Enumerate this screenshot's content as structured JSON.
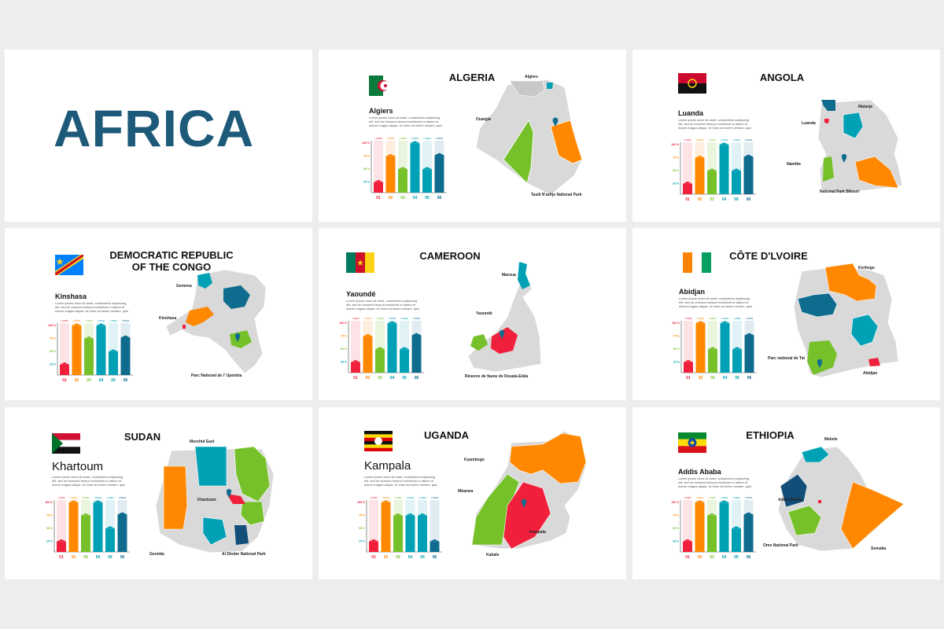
{
  "cover": {
    "title": "AFRICA"
  },
  "body_text": "Lorem ipsum dolor sit amet, consectetur adipiscing elit, sed do eiusmod tempor incididunt ut labore et dolore magna aliqua. Ut enim ad minim veniam, quis",
  "colors": {
    "red": "#f0203c",
    "orange": "#ff8800",
    "green": "#76c12a",
    "teal": "#00a1b5",
    "blue": "#0f6c8e",
    "navy": "#124e78",
    "grey": "#d9d9d9",
    "title": "#1d5a7a"
  },
  "chart_data": [
    {
      "type": "bar",
      "id": "algeria",
      "categories": [
        "01",
        "02",
        "03",
        "04",
        "05",
        "06"
      ],
      "yticks": [
        "100 %",
        "75 %",
        "50 %",
        "25 %"
      ],
      "top_labels": [
        "LOREM",
        "LOREM",
        "LOREM",
        "LOREM",
        "LOREM",
        "LOREM"
      ],
      "values": [
        20,
        70,
        45,
        95,
        45,
        72
      ],
      "ylim": [
        0,
        100
      ]
    },
    {
      "type": "bar",
      "id": "angola",
      "categories": [
        "01",
        "02",
        "03",
        "04",
        "05",
        "06"
      ],
      "yticks": [
        "100 %",
        "75 %",
        "50 %",
        "25 %"
      ],
      "top_labels": [
        "LOREM",
        "LOREM",
        "LOREM",
        "LOREM",
        "LOREM",
        "LOREM"
      ],
      "values": [
        20,
        70,
        45,
        95,
        45,
        72
      ],
      "ylim": [
        0,
        100
      ]
    },
    {
      "type": "bar",
      "id": "congo",
      "categories": [
        "01",
        "02",
        "03",
        "04",
        "05",
        "06"
      ],
      "yticks": [
        "100 %",
        "75 %",
        "50 %",
        "25 %"
      ],
      "top_labels": [
        "LOREM",
        "LOREM",
        "LOREM",
        "LOREM",
        "LOREM",
        "LOREM"
      ],
      "values": [
        20,
        95,
        70,
        95,
        45,
        72
      ],
      "ylim": [
        0,
        100
      ]
    },
    {
      "type": "bar",
      "id": "cameroon",
      "categories": [
        "01",
        "02",
        "03",
        "04",
        "05",
        "06"
      ],
      "yticks": [
        "100 %",
        "75 %",
        "50 %",
        "25 %"
      ],
      "top_labels": [
        "LOREM",
        "LOREM",
        "LOREM",
        "LOREM",
        "LOREM",
        "LOREM"
      ],
      "values": [
        20,
        70,
        45,
        95,
        45,
        72
      ],
      "ylim": [
        0,
        100
      ]
    },
    {
      "type": "bar",
      "id": "cote",
      "categories": [
        "01",
        "02",
        "03",
        "04",
        "05",
        "06"
      ],
      "yticks": [
        "100 %",
        "75 %",
        "50 %",
        "25 %"
      ],
      "top_labels": [
        "LOREM",
        "LOREM",
        "LOREM",
        "LOREM",
        "LOREM",
        "LOREM"
      ],
      "values": [
        20,
        95,
        45,
        95,
        45,
        72
      ],
      "ylim": [
        0,
        100
      ]
    },
    {
      "type": "bar",
      "id": "sudan",
      "categories": [
        "01",
        "02",
        "03",
        "04",
        "05",
        "06"
      ],
      "yticks": [
        "100 %",
        "75 %",
        "50 %",
        "25 %"
      ],
      "top_labels": [
        "LOREM",
        "LOREM",
        "LOREM",
        "LOREM",
        "LOREM",
        "LOREM"
      ],
      "values": [
        20,
        95,
        70,
        95,
        45,
        72
      ],
      "ylim": [
        0,
        100
      ]
    },
    {
      "type": "bar",
      "id": "uganda",
      "categories": [
        "01",
        "02",
        "03",
        "04",
        "05",
        "06"
      ],
      "yticks": [
        "100 %",
        "75 %",
        "50 %",
        "25 %"
      ],
      "top_labels": [
        "LOREM",
        "LOREM",
        "LOREM",
        "LOREM",
        "LOREM",
        "LOREM"
      ],
      "values": [
        20,
        95,
        70,
        70,
        70,
        20
      ],
      "ylim": [
        0,
        100
      ]
    },
    {
      "type": "bar",
      "id": "ethiopia",
      "categories": [
        "01",
        "02",
        "03",
        "04",
        "05",
        "06"
      ],
      "yticks": [
        "100 %",
        "75 %",
        "50 %",
        "25 %"
      ],
      "top_labels": [
        "LOREM",
        "LOREM",
        "LOREM",
        "LOREM",
        "LOREM",
        "LOREM"
      ],
      "values": [
        20,
        95,
        70,
        95,
        45,
        72
      ],
      "ylim": [
        0,
        100
      ]
    }
  ],
  "slides": [
    {
      "id": "algeria",
      "country": "ALGERIA",
      "capital": "Algiers",
      "flag": "algeria",
      "labels": [
        "Algiers",
        "Ouargla",
        "Tasili N'azhje National Park"
      ]
    },
    {
      "id": "angola",
      "country": "ANGOLA",
      "capital": "Luanda",
      "flag": "angola",
      "labels": [
        "Malanje",
        "Luanda",
        "Namibe",
        "National Park Bikouri"
      ]
    },
    {
      "id": "congo",
      "country": "DEMOCRATIC REPUBLIC OF THE CONGO",
      "capital": "Kinshasa",
      "flag": "congo",
      "labels": [
        "Gemena",
        "Kinshasa",
        "Parc National de l' Upemba"
      ]
    },
    {
      "id": "cameroon",
      "country": "CAMEROON",
      "capital": "Yaoundé",
      "flag": "cameroon",
      "labels": [
        "Maroua",
        "Yaoundé",
        "Réserve de faune de Douala-Edéa"
      ]
    },
    {
      "id": "cote",
      "country": "CÔTE D'LVOIRE",
      "capital": "Abidjan",
      "flag": "cote",
      "labels": [
        "Korhogo",
        "Parc national de Taï",
        "Abidjan"
      ]
    },
    {
      "id": "sudan",
      "country": "SUDAN",
      "capital": "Khartoum",
      "flag": "sudan",
      "labels": [
        "Murshid East",
        "Khartoum",
        "Gereida",
        "Al Dinder National Park"
      ]
    },
    {
      "id": "uganda",
      "country": "UGANDA",
      "capital": "Kampala",
      "flag": "uganda",
      "labels": [
        "Kyambogo",
        "Mbarara",
        "Kampala",
        "Kabale"
      ]
    },
    {
      "id": "ethiopia",
      "country": "ETHIOPIA",
      "capital": "Addis Ababa",
      "flag": "ethiopia",
      "labels": [
        "Mekele",
        "Addis Ababa",
        "Omo National Park",
        "Somalia"
      ]
    }
  ]
}
